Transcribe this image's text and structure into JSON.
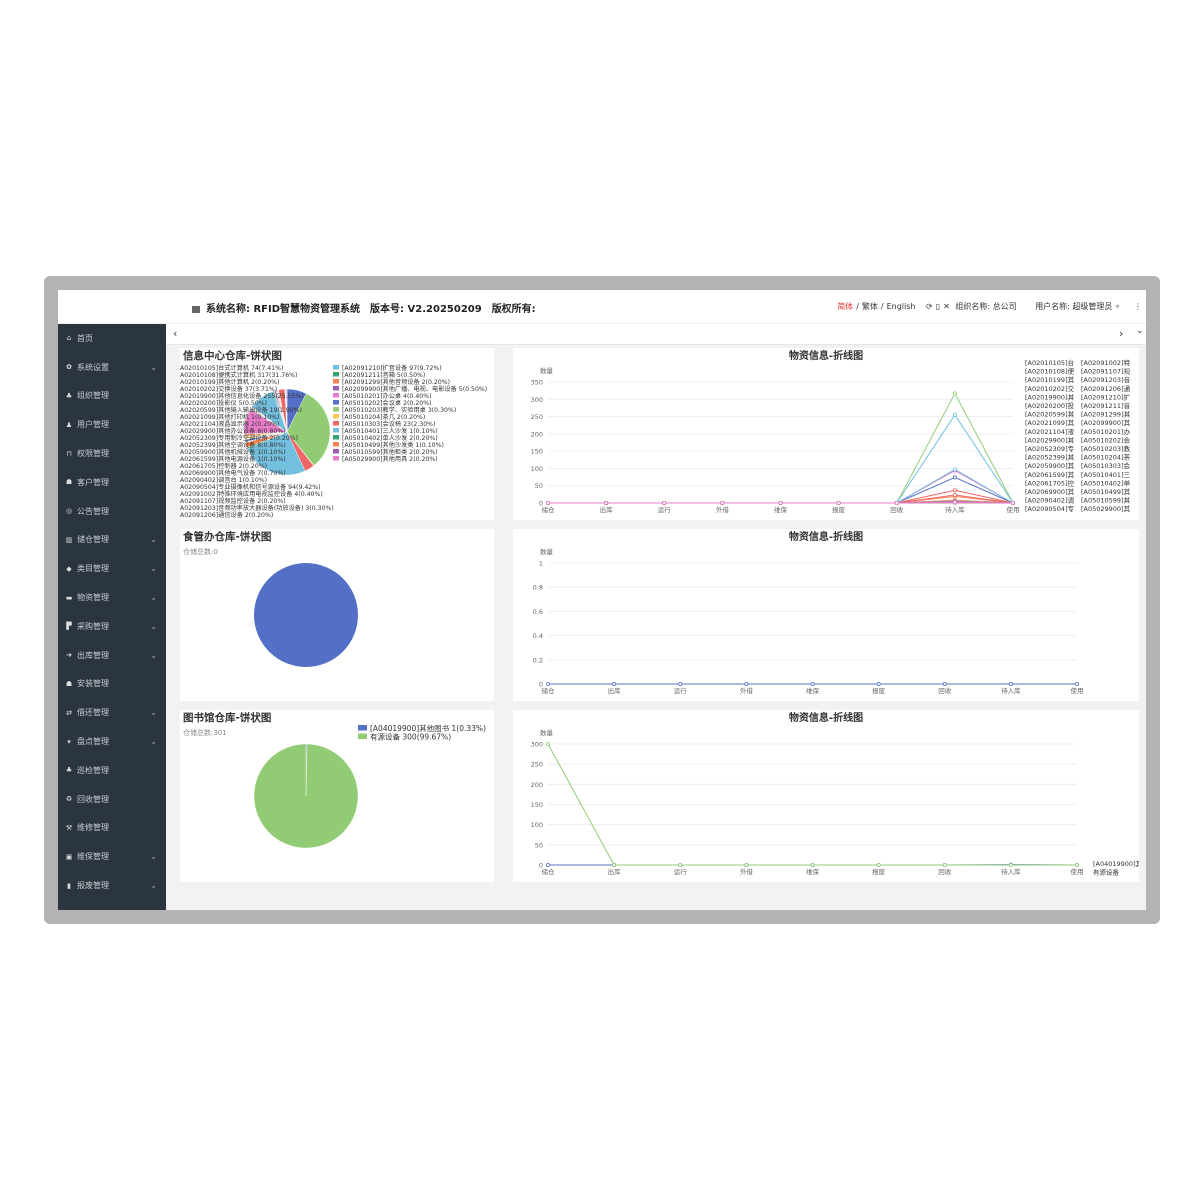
{
  "header": {
    "system_label": "系统名称: RFID智慧物资管理系统",
    "version_label": "版本号: V2.20250209",
    "copyright_label": "版权所有:",
    "lang_simplified": "简体",
    "lang_traditional": "繁体",
    "lang_english": "English",
    "sep": "/",
    "org_label": "组织名称: 总公司",
    "user_label": "用户名称: 超级管理员"
  },
  "sidebar": {
    "items": [
      {
        "label": "首页",
        "icon": "home-icon",
        "glyph": "⌂",
        "sub": false
      },
      {
        "label": "系统设置",
        "icon": "gear-icon",
        "glyph": "✿",
        "sub": true
      },
      {
        "label": "组织管理",
        "icon": "sitemap-icon",
        "glyph": "♣",
        "sub": false
      },
      {
        "label": "用户管理",
        "icon": "user-icon",
        "glyph": "♟",
        "sub": false
      },
      {
        "label": "权限管理",
        "icon": "lock-icon",
        "glyph": "⊓",
        "sub": false
      },
      {
        "label": "客户管理",
        "icon": "users-icon",
        "glyph": "☗",
        "sub": false
      },
      {
        "label": "公告管理",
        "icon": "bullhorn-icon",
        "glyph": "◎",
        "sub": false
      },
      {
        "label": "储仓管理",
        "icon": "bank-icon",
        "glyph": "▥",
        "sub": true
      },
      {
        "label": "类目管理",
        "icon": "tags-icon",
        "glyph": "◆",
        "sub": true
      },
      {
        "label": "物资管理",
        "icon": "briefcase-icon",
        "glyph": "▬",
        "sub": true
      },
      {
        "label": "采购管理",
        "icon": "cart-icon",
        "glyph": "▛",
        "sub": true
      },
      {
        "label": "出库管理",
        "icon": "sign-out-icon",
        "glyph": "➜",
        "sub": true
      },
      {
        "label": "安装管理",
        "icon": "users-icon",
        "glyph": "☗",
        "sub": false
      },
      {
        "label": "借还管理",
        "icon": "exchange-icon",
        "glyph": "⇄",
        "sub": true
      },
      {
        "label": "盘点管理",
        "icon": "wifi-icon",
        "glyph": "▾",
        "sub": true
      },
      {
        "label": "巡检管理",
        "icon": "sitemap-icon",
        "glyph": "♣",
        "sub": false
      },
      {
        "label": "回收管理",
        "icon": "recycle-icon",
        "glyph": "♻",
        "sub": false
      },
      {
        "label": "维修管理",
        "icon": "gavel-icon",
        "glyph": "⚒",
        "sub": false
      },
      {
        "label": "维保管理",
        "icon": "medkit-icon",
        "glyph": "▣",
        "sub": true
      },
      {
        "label": "报废管理",
        "icon": "trash-icon",
        "glyph": "▮",
        "sub": true
      }
    ]
  },
  "tabs": {
    "prev": "‹",
    "next": "›",
    "more": "⌄"
  },
  "palette": [
    "#5470c6",
    "#91cc75",
    "#fac858",
    "#ee6666",
    "#73c0de",
    "#3ba272",
    "#fc8452",
    "#9a60b4",
    "#ea7ccc"
  ],
  "chart_data": [
    {
      "type": "pie",
      "title": "信息中心仓库-饼状图",
      "items": [
        {
          "label": "A02010105]台式计算机 74(7.41%)",
          "value": 74
        },
        {
          "label": "A02010108]便携式计算机 317(31.76%)",
          "value": 317
        },
        {
          "label": "A02010199]其他计算机 2(0.20%)",
          "value": 2
        },
        {
          "label": "A02010202]交换设备 37(3.71%)",
          "value": 37
        },
        {
          "label": "A02019900]其他信息化设备 255(25.55%)",
          "value": 255
        },
        {
          "label": "A02020200]投影仪 5(0.50%)",
          "value": 5
        },
        {
          "label": "A02020599]其他输入输出设备 19(1.90%)",
          "value": 19
        },
        {
          "label": "A02021099]其他打印机 1(0.10%)",
          "value": 1
        },
        {
          "label": "A02021104]液晶显示器 2(0.20%)",
          "value": 2
        },
        {
          "label": "A02029900]其他办公设备 8(0.80%)",
          "value": 8
        },
        {
          "label": "A02052309]专用制冷空调设备 2(0.20%)",
          "value": 2
        },
        {
          "label": "A02052399]其他空调设备 8(0.80%)",
          "value": 8
        },
        {
          "label": "A02059900]其他机械设备 1(0.10%)",
          "value": 1
        },
        {
          "label": "A02061599]其他电源设备 1(0.10%)",
          "value": 1
        },
        {
          "label": "A02061705]控制器 2(0.20%)",
          "value": 2
        },
        {
          "label": "A02069900]其他电气设备 7(0.70%)",
          "value": 7
        },
        {
          "label": "A02090402]调音台 1(0.10%)",
          "value": 1
        },
        {
          "label": "A02090504]专业摄像机和信号源设备 94(9.42%)",
          "value": 94
        },
        {
          "label": "A02091002]特殊环境应用电视监控设备 4(0.40%)",
          "value": 4
        },
        {
          "label": "A02091107]视频监控设备 2(0.20%)",
          "value": 2
        },
        {
          "label": "A02091203]音频功率放大器设备(功放设备) 3(0.30%)",
          "value": 3
        },
        {
          "label": "A02091206]通信设备 2(0.20%)",
          "value": 2
        },
        {
          "label": "[A02091210]扩音设备 97(9.72%)",
          "value": 97
        },
        {
          "label": "[A02091211]音箱 5(0.50%)",
          "value": 5
        },
        {
          "label": "[A02091299]其他音频设备 2(0.20%)",
          "value": 2
        },
        {
          "label": "[A02099900]其他广播、电视、电影设备 5(0.50%)",
          "value": 5
        },
        {
          "label": "[A05010201]办公桌 4(0.40%)",
          "value": 4
        },
        {
          "label": "[A05010202]会议桌 2(0.20%)",
          "value": 2
        },
        {
          "label": "[A05010203]教学、实验用桌 3(0.30%)",
          "value": 3
        },
        {
          "label": "[A05010204]茶几 2(0.20%)",
          "value": 2
        },
        {
          "label": "[A05010303]会议椅 23(2.30%)",
          "value": 23
        },
        {
          "label": "[A05010401]三人沙发 1(0.10%)",
          "value": 1
        },
        {
          "label": "[A05010402]单人沙发 2(0.20%)",
          "value": 2
        },
        {
          "label": "[A05010499]其他沙发类 1(0.10%)",
          "value": 1
        },
        {
          "label": "[A05010599]其他柜类 2(0.20%)",
          "value": 2
        },
        {
          "label": "[A05029900]其他用具 2(0.20%)",
          "value": 2
        }
      ],
      "outside_labels": 22,
      "legend": "right"
    },
    {
      "type": "line",
      "title": "物资信息-折线图",
      "ylabel": "数量",
      "ylim": [
        0,
        350
      ],
      "yticks": [
        0,
        50,
        100,
        150,
        200,
        250,
        300,
        350
      ],
      "categories": [
        "储仓",
        "出库",
        "运行",
        "外借",
        "维保",
        "报废",
        "回收",
        "待入库",
        "使用"
      ],
      "series_from_pie": 0,
      "peak_category": "待入库",
      "legend": "right",
      "legend_items": [
        "[A02010105]台",
        "[A02010108]便",
        "[A02010199]其",
        "[A02010202]交",
        "[A02019900]其",
        "[A02020200]投",
        "[A02020599]其",
        "[A02021099]其",
        "[A02021104]液",
        "[A02029900]其",
        "[A02052309]专",
        "[A02052399]其",
        "[A02059900]其",
        "[A02061599]其",
        "[A02061705]控",
        "[A02069900]其",
        "[A02090402]调",
        "[A02090504]专",
        "[A02091002]特",
        "[A02091107]视",
        "[A02091203]音",
        "[A02091206]通",
        "[A02091210]扩",
        "[A02091211]音",
        "[A02091299]其",
        "[A02099900]其",
        "[A05010201]办",
        "[A05010202]会",
        "[A05010203]教",
        "[A05010204]茶",
        "[A05010303]会",
        "[A05010401]三",
        "[A05010402]单",
        "[A05010499]其",
        "[A05010599]其",
        "[A05029900]其"
      ]
    },
    {
      "type": "pie",
      "title": "食管办仓库-饼状图",
      "subtitle": "仓储总数:0",
      "items": [
        {
          "label": "",
          "value": 1
        }
      ],
      "colors": [
        "#5470c6"
      ]
    },
    {
      "type": "line",
      "title": "物资信息-折线图",
      "ylabel": "数量",
      "ylim": [
        0,
        1
      ],
      "yticks": [
        "0",
        "0.2",
        "0.4",
        "0.6",
        "0.8",
        "1"
      ],
      "categories": [
        "储仓",
        "出库",
        "运行",
        "外借",
        "维保",
        "报废",
        "回收",
        "待入库",
        "使用"
      ],
      "series": [
        {
          "values": [
            0,
            0,
            0,
            0,
            0,
            0,
            0,
            0,
            0
          ],
          "color": "#5470c6"
        }
      ]
    },
    {
      "type": "pie",
      "title": "图书馆仓库-饼状图",
      "subtitle": "仓储总数:301",
      "legend": "top-right",
      "items": [
        {
          "label": "[A04019900]其他图书 1(0.33%)",
          "value": 1,
          "color": "#5470c6"
        },
        {
          "label": "有源设备 300(99.67%)",
          "value": 300,
          "color": "#91cc75"
        }
      ]
    },
    {
      "type": "line",
      "title": "物资信息-折线图",
      "ylabel": "数量",
      "ylim": [
        0,
        300
      ],
      "yticks": [
        0,
        50,
        100,
        150,
        200,
        250,
        300
      ],
      "categories": [
        "储仓",
        "出库",
        "运行",
        "外借",
        "维保",
        "报废",
        "回收",
        "待入库",
        "使用"
      ],
      "legend": "right",
      "series": [
        {
          "name": "[A04019900]其",
          "values": [
            0,
            0,
            0,
            0,
            0,
            0,
            0,
            1,
            0
          ],
          "color": "#5470c6"
        },
        {
          "name": "有源设备",
          "values": [
            300,
            0,
            0,
            0,
            0,
            0,
            0,
            0,
            0
          ],
          "color": "#91cc75"
        }
      ]
    }
  ]
}
